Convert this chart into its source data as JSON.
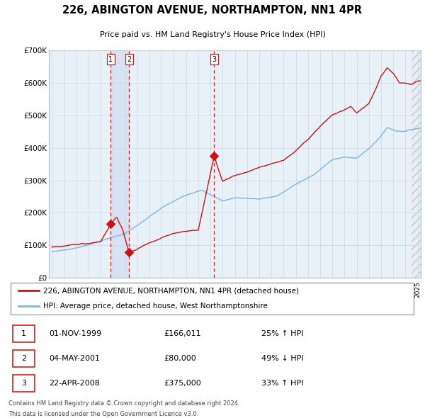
{
  "title": "226, ABINGTON AVENUE, NORTHAMPTON, NN1 4PR",
  "subtitle": "Price paid vs. HM Land Registry's House Price Index (HPI)",
  "legend_line1": "226, ABINGTON AVENUE, NORTHAMPTON, NN1 4PR (detached house)",
  "legend_line2": "HPI: Average price, detached house, West Northamptonshire",
  "footer1": "Contains HM Land Registry data © Crown copyright and database right 2024.",
  "footer2": "This data is licensed under the Open Government Licence v3.0.",
  "transactions": [
    {
      "num": 1,
      "date": "01-NOV-1999",
      "price": 166011,
      "pct": "25%",
      "dir": "↑",
      "x_year": 1999.833
    },
    {
      "num": 2,
      "date": "04-MAY-2001",
      "price": 80000,
      "pct": "49%",
      "dir": "↓",
      "x_year": 2001.333
    },
    {
      "num": 3,
      "date": "22-APR-2008",
      "price": 375000,
      "pct": "33%",
      "dir": "↑",
      "x_year": 2008.3
    }
  ],
  "hpi_color": "#7fb3e0",
  "property_color": "#cc1111",
  "plot_bg_color": "#e8f0f8",
  "grid_color": "#c8d8e8",
  "vline_color": "#cc2222",
  "hatch_color": "#c0c8d0",
  "ylim": [
    0,
    700000
  ],
  "xlim_start": 1994.75,
  "xlim_end": 2025.25,
  "future_start": 2024.5
}
